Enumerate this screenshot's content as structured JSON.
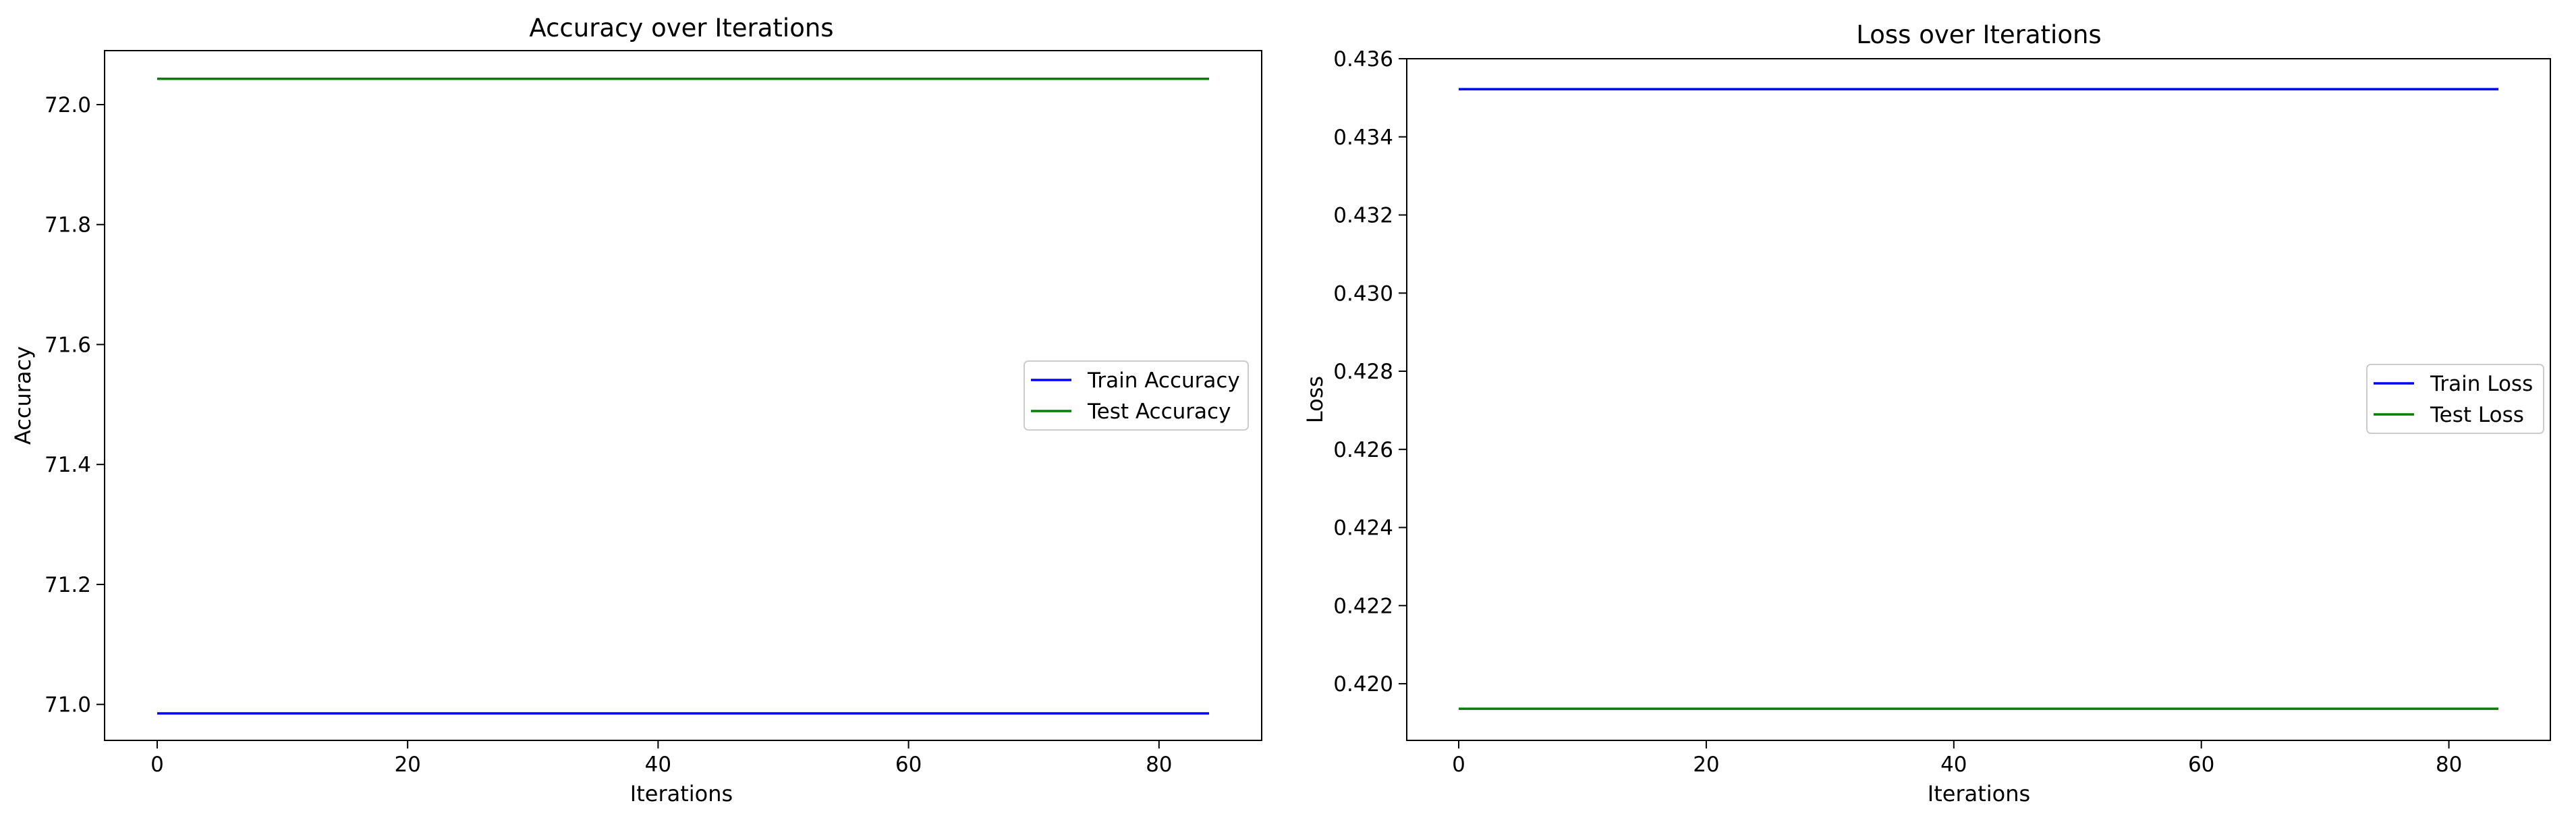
{
  "chart_data": [
    {
      "type": "line",
      "title": "Accuracy over Iterations",
      "xlabel": "Iterations",
      "ylabel": "Accuracy",
      "xlim": [
        -4.2,
        88.2
      ],
      "ylim": [
        70.94,
        72.09
      ],
      "xticks": [
        0,
        20,
        40,
        60,
        80
      ],
      "yticks": [
        71.0,
        71.2,
        71.4,
        71.6,
        71.8,
        72.0
      ],
      "ytick_labels": [
        "71.0",
        "71.2",
        "71.4",
        "71.6",
        "71.8",
        "72.0"
      ],
      "grid": false,
      "legend_position": "center-right",
      "x": [
        0,
        84
      ],
      "series": [
        {
          "name": "Train Accuracy",
          "color": "#0000ff",
          "values": [
            70.985,
            70.985
          ]
        },
        {
          "name": "Test Accuracy",
          "color": "#008000",
          "values": [
            72.043,
            72.043
          ]
        }
      ]
    },
    {
      "type": "line",
      "title": "Loss over Iterations",
      "xlabel": "Iterations",
      "ylabel": "Loss",
      "xlim": [
        -4.2,
        88.2
      ],
      "ylim": [
        0.41855,
        0.436
      ],
      "xticks": [
        0,
        20,
        40,
        60,
        80
      ],
      "yticks": [
        0.42,
        0.422,
        0.424,
        0.426,
        0.428,
        0.43,
        0.432,
        0.434,
        0.436
      ],
      "ytick_labels": [
        "0.420",
        "0.422",
        "0.424",
        "0.426",
        "0.428",
        "0.430",
        "0.432",
        "0.434",
        "0.436"
      ],
      "grid": false,
      "legend_position": "center-right",
      "x": [
        0,
        84
      ],
      "series": [
        {
          "name": "Train Loss",
          "color": "#0000ff",
          "values": [
            0.43522,
            0.43522
          ]
        },
        {
          "name": "Test Loss",
          "color": "#008000",
          "values": [
            0.41936,
            0.41936
          ]
        }
      ]
    }
  ]
}
